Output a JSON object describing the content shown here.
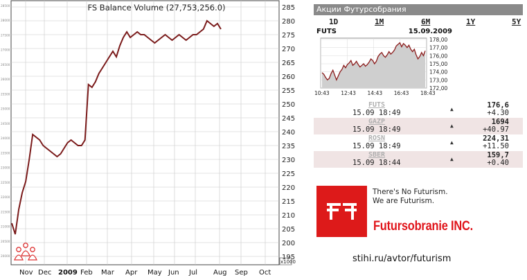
{
  "left_chart": {
    "title": "FS Balance Volume (27,753,256.0)",
    "right_axis_labels": [
      "285",
      "280",
      "275",
      "270",
      "265",
      "260",
      "255",
      "250",
      "245",
      "240",
      "235",
      "230",
      "225",
      "220",
      "215",
      "210",
      "205",
      "200",
      "195",
      "x1000"
    ],
    "left_axis_labels": [
      "28500",
      "28000",
      "27500",
      "27000",
      "26500",
      "26000",
      "25500",
      "25000",
      "24500",
      "24000",
      "23500",
      "23000",
      "22500",
      "22000",
      "21500",
      "21000",
      "20500",
      "20000"
    ],
    "x_labels": [
      "Nov",
      "Dec",
      "2009",
      "Feb",
      "Mar",
      "Apr",
      "May",
      "Jun",
      "Jul",
      "Aug",
      "Sep",
      "Oct"
    ],
    "line_color": "#7a1a1a",
    "icon": "people-icon"
  },
  "chart_data": [
    {
      "type": "line",
      "title": "FS Balance Volume (27,753,256.0)",
      "ylabel": "x1000",
      "ylim": [
        195,
        285
      ],
      "x": [
        "Oct 27",
        "Oct 31",
        "Nov 5",
        "Nov 10",
        "Nov 14",
        "Nov 19",
        "Nov 24",
        "Nov 28",
        "Dec 3",
        "Dec 8",
        "Dec 12",
        "Dec 17",
        "Dec 22",
        "Dec 26",
        "Dec 31",
        "Jan 5",
        "Jan 9",
        "Jan 14",
        "Jan 19",
        "Jan 23",
        "Jan 28",
        "Feb 2",
        "Feb 6",
        "Feb 11",
        "Feb 16",
        "Feb 20",
        "Feb 25",
        "Mar 2",
        "Mar 6",
        "Mar 11",
        "Mar 16",
        "Mar 20",
        "Mar 25",
        "Mar 30",
        "Apr 3",
        "Apr 8",
        "Apr 13",
        "Apr 17",
        "Apr 22",
        "Apr 27",
        "May 1",
        "May 6",
        "May 11",
        "May 15",
        "May 20",
        "May 25",
        "May 29",
        "Jun 3",
        "Jun 8",
        "Jun 12",
        "Jun 17",
        "Jun 22",
        "Jun 26",
        "Jul 1",
        "Jul 6",
        "Jul 10",
        "Jul 15",
        "Jul 20",
        "Jul 24",
        "Jul 29",
        "Aug 3"
      ],
      "series": [
        {
          "values": [
            207,
            203,
            212,
            218,
            222,
            230,
            239,
            238,
            237,
            235,
            234,
            233,
            232,
            231,
            232,
            234,
            236,
            237,
            236,
            235,
            235,
            237,
            257,
            256,
            258,
            261,
            263,
            265,
            267,
            269,
            267,
            271,
            274,
            276,
            274,
            275,
            276,
            275,
            275,
            274,
            273,
            272,
            273,
            274,
            275,
            274,
            273,
            274,
            275,
            274,
            273,
            274,
            275,
            275,
            276,
            277,
            280,
            279,
            278,
            279,
            277
          ]
        }
      ]
    },
    {
      "type": "line",
      "title": "",
      "ylim": [
        172,
        178
      ],
      "x_ticks": [
        "10:43",
        "12:43",
        "14:43",
        "16:43",
        "18:43"
      ],
      "series": [
        {
          "values": [
            173.9,
            173.7,
            173.3,
            173.0,
            173.2,
            173.8,
            174.2,
            173.6,
            173.0,
            173.5,
            174.0,
            174.3,
            174.8,
            174.5,
            174.9,
            175.1,
            175.4,
            174.8,
            175.0,
            175.3,
            174.9,
            174.6,
            174.8,
            175.0,
            174.7,
            174.9,
            175.2,
            175.6,
            175.4,
            175.0,
            175.3,
            175.9,
            176.2,
            176.4,
            176.0,
            175.8,
            176.1,
            176.5,
            176.2,
            176.4,
            176.7,
            177.2,
            177.4,
            177.6,
            177.1,
            177.5,
            177.3,
            177.0,
            177.3,
            176.8,
            176.5,
            176.8,
            176.1,
            175.6,
            175.9,
            176.4,
            176.0,
            176.6
          ]
        }
      ]
    }
  ],
  "panel": {
    "header": "Акции Футурсобрания",
    "periods": [
      {
        "label": "1D",
        "active": true
      },
      {
        "label": "1M",
        "active": false
      },
      {
        "label": "6M",
        "active": false
      },
      {
        "label": "1Y",
        "active": false
      },
      {
        "label": "5Y",
        "active": false
      }
    ],
    "mini_symbol": "FUTS",
    "mini_date": "15.09.2009",
    "mini_y_labels": [
      "178,00",
      "177,00",
      "176,00",
      "175,00",
      "174,00",
      "173,00",
      "172,00"
    ],
    "mini_x_labels": [
      "10:43",
      "12:43",
      "14:43",
      "16:43",
      "18:43"
    ],
    "tickers": [
      {
        "symbol": "FUTS",
        "time": "15.09 18:49",
        "price": "176,6",
        "change": "+4.30",
        "arrow": "▲"
      },
      {
        "symbol": "GAZP",
        "time": "15.09 18:49",
        "price": "1694",
        "change": "+40.97",
        "arrow": "▲"
      },
      {
        "symbol": "ROSN",
        "time": "15.09 18:49",
        "price": "224,31",
        "change": "+11.50",
        "arrow": "▲"
      },
      {
        "symbol": "SBER",
        "time": "15.09 18:44",
        "price": "159,7",
        "change": "+0.40",
        "arrow": "▲"
      }
    ],
    "slogan_line1": "There's No Futurism.",
    "slogan_line2": "We are Futurism.",
    "brand": "Futursobranie INC.",
    "url": "stihi.ru/avtor/futurism",
    "logo_color": "#dd1a1a",
    "brand_color": "#e0141a"
  }
}
